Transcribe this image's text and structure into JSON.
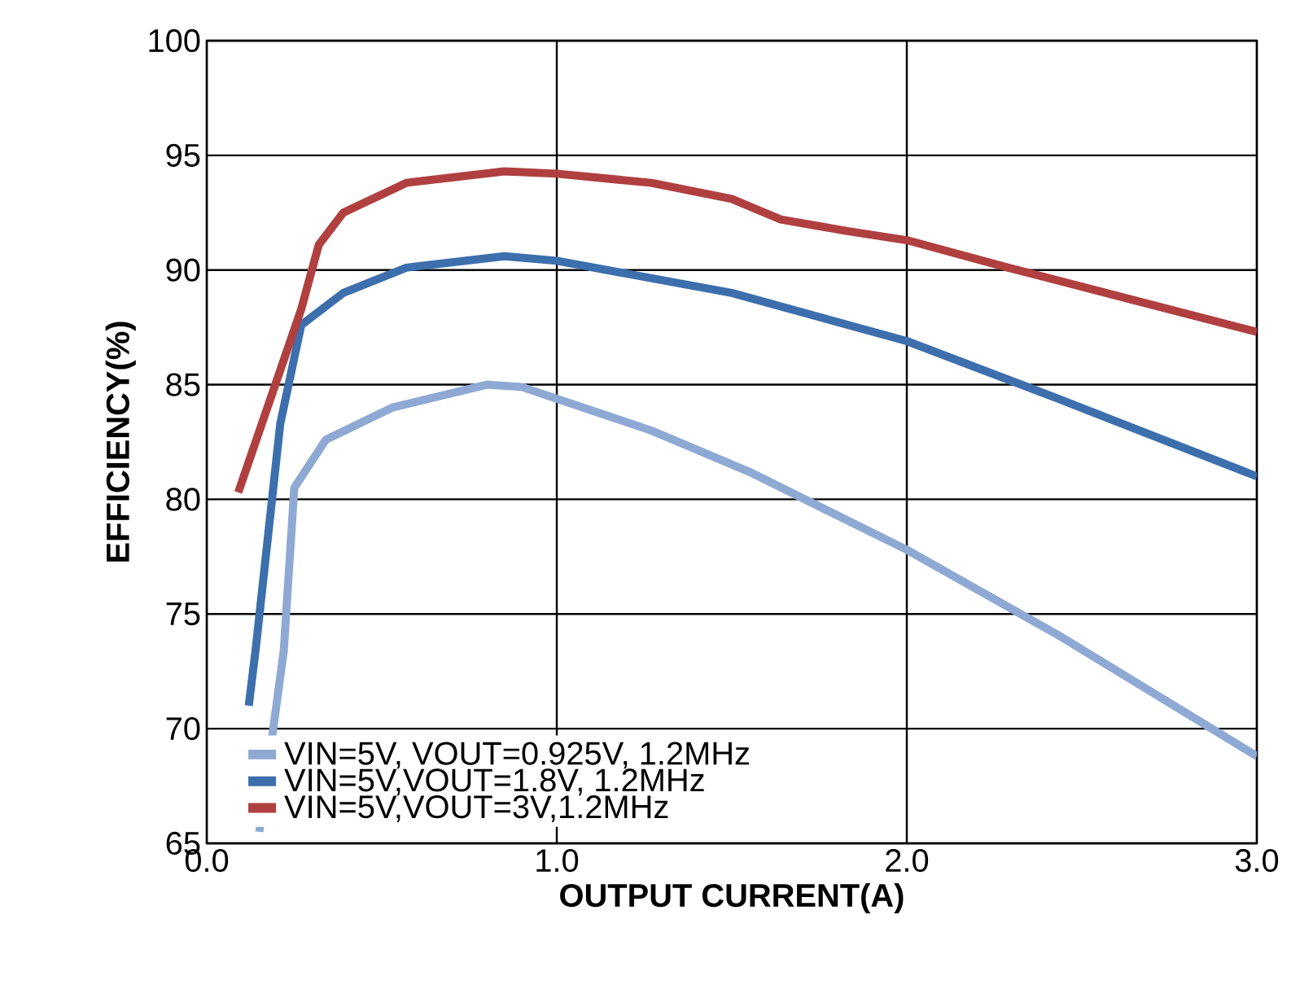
{
  "chart_data": {
    "type": "line",
    "xlabel": "OUTPUT CURRENT(A)",
    "ylabel": "EFFICIENCY(%)",
    "xlim": [
      0,
      3
    ],
    "ylim": [
      65,
      100
    ],
    "xticks": [
      {
        "value": 0,
        "label": "0.0"
      },
      {
        "value": 1,
        "label": "1.0"
      },
      {
        "value": 2,
        "label": "2.0"
      },
      {
        "value": 3,
        "label": "3.0"
      }
    ],
    "yticks": [
      65,
      70,
      75,
      80,
      85,
      90,
      95,
      100
    ],
    "grid": true,
    "legend": "bottom left",
    "line_style": "solid",
    "marker": "none",
    "series": [
      {
        "name": "VIN=5V, VOUT=0.925V, 1.2MHz",
        "color": "#8ea9d3",
        "x": [
          0.15,
          0.22,
          0.25,
          0.34,
          0.53,
          0.8,
          0.9,
          1.27,
          1.55,
          2.0,
          2.43,
          3.0
        ],
        "values": [
          65.5,
          73.4,
          80.5,
          82.6,
          84.0,
          85.0,
          84.9,
          83.0,
          81.2,
          77.8,
          74.1,
          68.8
        ]
      },
      {
        "name": "VIN=5V,VOUT=1.8V, 1.2MHz",
        "color": "#3d6fad",
        "x": [
          0.12,
          0.14,
          0.21,
          0.27,
          0.39,
          0.57,
          0.85,
          1.0,
          1.5,
          2.0,
          2.43,
          3.0
        ],
        "values": [
          71.0,
          73.5,
          83.3,
          87.6,
          89.0,
          90.1,
          90.6,
          90.4,
          89.0,
          86.9,
          84.4,
          81.0
        ]
      },
      {
        "name": "VIN=5V,VOUT=3V,1.2MHz",
        "color": "#b04040",
        "x": [
          0.09,
          0.27,
          0.32,
          0.39,
          0.57,
          0.85,
          1.0,
          1.27,
          1.5,
          1.64,
          1.83,
          2.0,
          2.29,
          2.67,
          3.0
        ],
        "values": [
          80.3,
          88.3,
          91.1,
          92.5,
          93.8,
          94.3,
          94.2,
          93.8,
          93.1,
          92.2,
          91.7,
          91.3,
          90.1,
          88.6,
          87.3
        ]
      }
    ]
  }
}
